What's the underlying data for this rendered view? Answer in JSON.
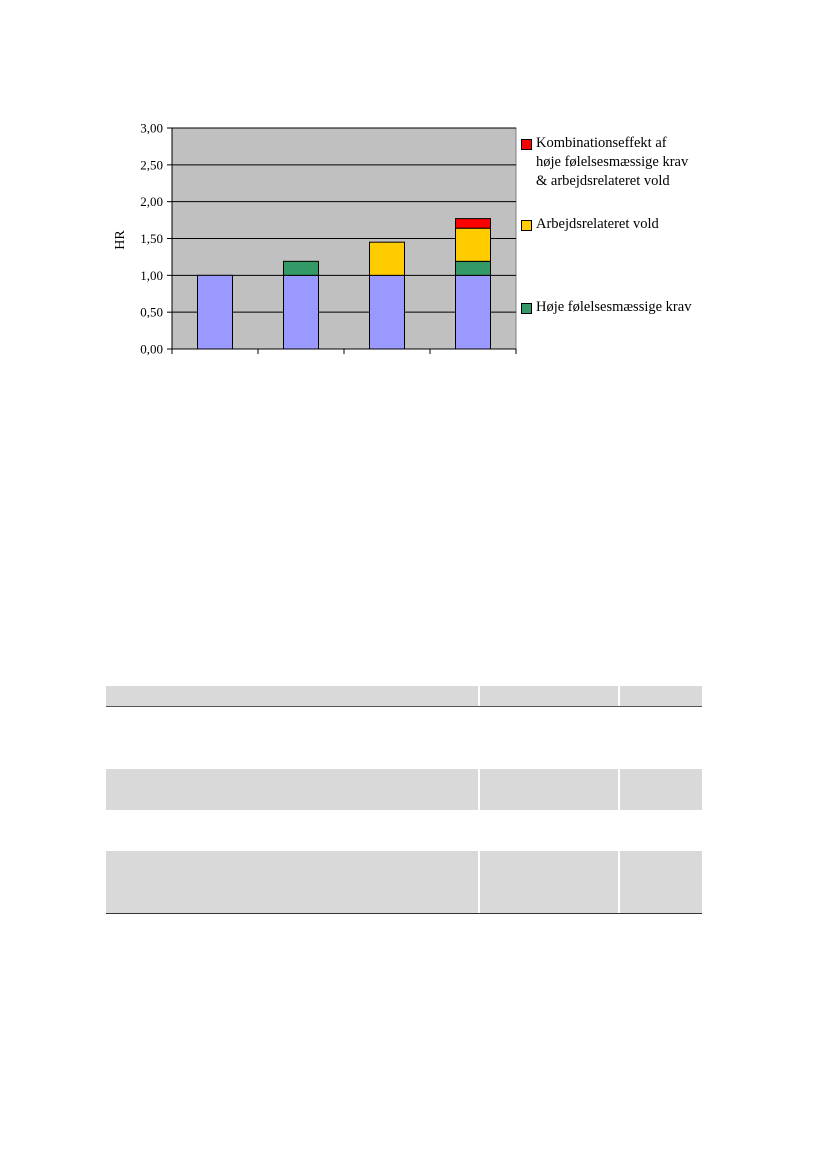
{
  "chart_data": {
    "type": "bar",
    "stacked": true,
    "ylabel": "HR",
    "ylim": [
      0,
      3
    ],
    "yticks": [
      "0,00",
      "0,50",
      "1,00",
      "1,50",
      "2,00",
      "2,50",
      "3,00"
    ],
    "ytick_values": [
      0,
      0.5,
      1,
      1.5,
      2,
      2.5,
      3
    ],
    "grid": true,
    "legend_placement": "right",
    "categories": [
      "",
      "",
      "",
      ""
    ],
    "series": [
      {
        "key": "base",
        "color": "#9999ff",
        "values": [
          1.0,
          1.0,
          1.0,
          1.0
        ]
      },
      {
        "name": "Høje følelsesmæssige krav",
        "color": "#339966",
        "values": [
          0,
          0.19,
          0,
          0.19
        ]
      },
      {
        "name": "Arbejdsrelateret vold",
        "color": "#ffcc00",
        "values": [
          0,
          0,
          0.45,
          0.45
        ]
      },
      {
        "name": "Kombinationseffekt af\nhøje følelsesmæssige krav\n& arbejdsrelateret vold",
        "color": "#ff0000",
        "values": [
          0,
          0,
          0,
          0.13
        ]
      }
    ]
  },
  "legend": {
    "combination": "Kombinationseffekt af\nhøje følelsesmæssige krav\n& arbejdsrelateret vold",
    "violence": "Arbejdsrelateret vold",
    "demands": "Høje følelsesmæssige krav"
  },
  "colors": {
    "plot_bg": "#c0c0c0",
    "table_shade": "#d9d9d9"
  }
}
